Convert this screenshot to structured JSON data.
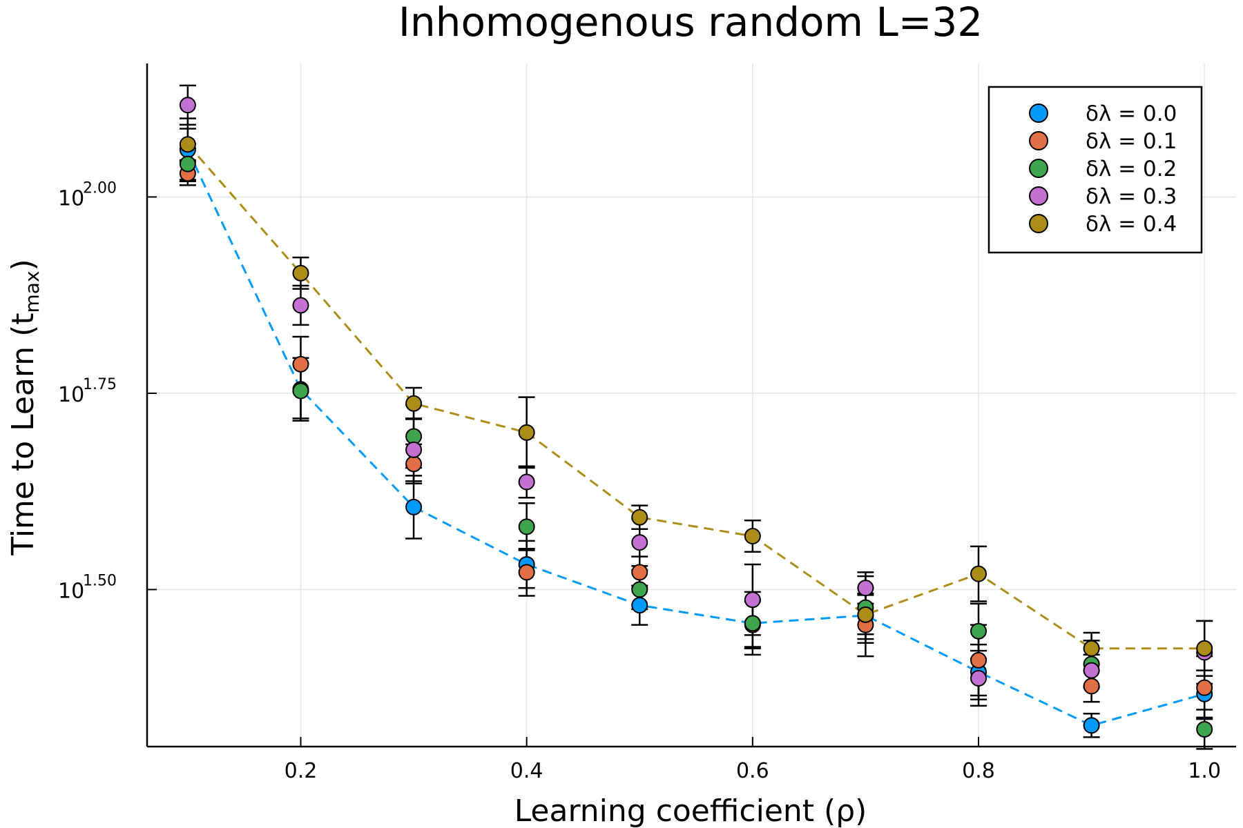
{
  "chart_data": {
    "type": "scatter",
    "title": "Inhomogenous random L=32",
    "xlabel": "Learning coefficient (ρ)",
    "ylabel_main": "Time to Learn (t",
    "ylabel_sub": "max",
    "ylabel_close": ")",
    "y_scale": "log10",
    "xlim": [
      0.064,
      1.028
    ],
    "ylim_log10": [
      1.3,
      2.17
    ],
    "x_ticks": [
      0.2,
      0.4,
      0.6,
      0.8,
      1.0
    ],
    "x_tick_labels": [
      "0.2",
      "0.4",
      "0.6",
      "0.8",
      "1.0"
    ],
    "y_ticks_log10": [
      1.5,
      1.75,
      2.0
    ],
    "y_tick_labels": [
      {
        "base": "10",
        "exp": "1.50"
      },
      {
        "base": "10",
        "exp": "1.75"
      },
      {
        "base": "10",
        "exp": "2.00"
      }
    ],
    "grid": true,
    "legend_position": "top-right",
    "x": [
      0.1,
      0.2,
      0.3,
      0.4,
      0.5,
      0.6,
      0.7,
      0.8,
      0.9,
      1.0
    ],
    "series": [
      {
        "name": "δλ = 0.0",
        "color": "#009AFA",
        "dashed_line": true,
        "log10_values": [
          2.06,
          1.755,
          1.605,
          1.532,
          1.48,
          1.457,
          1.467,
          1.395,
          1.327,
          1.367
        ],
        "log10_err": [
          0.04,
          0.04,
          0.04,
          0.03,
          0.025,
          0.04,
          0.035,
          0.035,
          0.015,
          0.03
        ]
      },
      {
        "name": "δλ = 0.1",
        "color": "#E36F47",
        "dashed_line": false,
        "log10_values": [
          2.03,
          1.787,
          1.66,
          1.522,
          1.522,
          1.455,
          1.455,
          1.41,
          1.377,
          1.375
        ],
        "log10_err": [
          0.015,
          0.035,
          0.025,
          0.03,
          0.02,
          0.03,
          0.04,
          0.045,
          0.02,
          0.04
        ]
      },
      {
        "name": "δλ = 0.2",
        "color": "#3EA44E",
        "dashed_line": false,
        "log10_values": [
          2.042,
          1.753,
          1.695,
          1.58,
          1.5,
          1.457,
          1.477,
          1.447,
          1.405,
          1.322
        ],
        "log10_err": [
          0.02,
          0.035,
          0.04,
          0.03,
          0.025,
          0.03,
          0.04,
          0.035,
          0.03,
          0.025
        ]
      },
      {
        "name": "δλ = 0.3",
        "color": "#C371D2",
        "dashed_line": false,
        "log10_values": [
          2.117,
          1.862,
          1.678,
          1.637,
          1.56,
          1.487,
          1.502,
          1.387,
          1.397,
          1.42
        ],
        "log10_err": [
          0.025,
          0.025,
          0.04,
          0.02,
          0.03,
          0.045,
          0.02,
          0.035,
          0.02,
          0.04
        ]
      },
      {
        "name": "δλ = 0.4",
        "color": "#AC8D18",
        "dashed_line": true,
        "log10_values": [
          2.067,
          1.903,
          1.737,
          1.7,
          1.592,
          1.568,
          1.468,
          1.52,
          1.425,
          1.425
        ],
        "log10_err": [
          0.02,
          0.02,
          0.02,
          0.045,
          0.015,
          0.02,
          0.025,
          0.035,
          0.02,
          0.035
        ]
      }
    ]
  }
}
